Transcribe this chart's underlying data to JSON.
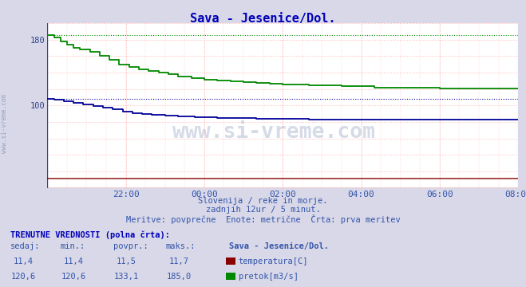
{
  "title": "Sava - Jesenice/Dol.",
  "bg_color": "#d8d8e8",
  "plot_bg_color": "#ffffff",
  "grid_color": "#ffcccc",
  "x_ticks_labels": [
    "22:00",
    "00:00",
    "02:00",
    "04:00",
    "06:00",
    "08:00"
  ],
  "x_ticks_pos": [
    24,
    48,
    72,
    96,
    120,
    144
  ],
  "total_points": 145,
  "temp_color": "#880000",
  "pretok_color": "#008800",
  "visina_color": "#000099",
  "temp_avg": 11.5,
  "temp_min": 11.4,
  "temp_max": 11.7,
  "temp_sedaj": 11.4,
  "pretok_avg": 133.1,
  "pretok_min": 120.6,
  "pretok_max": 185.0,
  "pretok_sedaj": 120.6,
  "visina_avg": 88,
  "visina_min": 83,
  "visina_max": 108,
  "visina_sedaj": 83,
  "subtitle1": "Slovenija / reke in morje.",
  "subtitle2": "zadnjih 12ur / 5 minut.",
  "subtitle3": "Meritve: povprečne  Enote: metrične  Črta: prva meritev",
  "table_header": "TRENUTNE VREDNOSTI (polna črta):",
  "col_headers": [
    "sedaj:",
    "min.:",
    "povpr.:",
    "maks.:",
    "Sava - Jesenice/Dol."
  ],
  "watermark": "www.si-vreme.com",
  "sidebar_text": "www.si-vreme.com",
  "ymin": 0,
  "ymax": 200,
  "yticks": [
    100,
    180
  ],
  "arrow_color": "#cc0000",
  "bottom_line_color": "#cc0000",
  "dashed_pretok_color": "#008800",
  "dashed_visina_color": "#000099"
}
